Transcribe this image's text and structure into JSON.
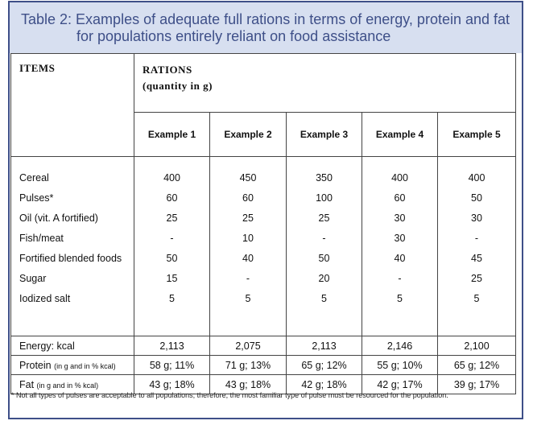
{
  "title": {
    "line1": "Table 2: Examples of adequate full rations in terms of energy, protein and fat",
    "line2": "for populations entirely reliant on food assistance"
  },
  "header": {
    "items": "ITEMS",
    "rations": "RATIONS",
    "quantity": "(quantity in g)",
    "examples": [
      "Example 1",
      "Example 2",
      "Example 3",
      "Example 4",
      "Example 5"
    ]
  },
  "items": [
    "Cereal",
    "Pulses*",
    "Oil (vit. A fortified)",
    "Fish/meat",
    "Fortified blended foods",
    "Sugar",
    "Iodized salt"
  ],
  "values": [
    [
      "400",
      "60",
      "25",
      "-",
      "50",
      "15",
      "5"
    ],
    [
      "450",
      "60",
      "25",
      "10",
      "40",
      "-",
      "5"
    ],
    [
      "350",
      "100",
      "25",
      "-",
      "50",
      "20",
      "5"
    ],
    [
      "400",
      "60",
      "30",
      "30",
      "40",
      "-",
      "5"
    ],
    [
      "400",
      "50",
      "30",
      "-",
      "45",
      "25",
      "5"
    ]
  ],
  "energy": {
    "label": "Energy: kcal",
    "values": [
      "2,113",
      "2,075",
      "2,113",
      "2,146",
      "2,100"
    ]
  },
  "protein": {
    "label": "Protein",
    "note": "(in g and in % kcal)",
    "values": [
      "58 g; 11%",
      "71 g; 13%",
      "65 g; 12%",
      "55 g; 10%",
      "65 g; 12%"
    ]
  },
  "fat": {
    "label": "Fat",
    "note": "(in g and in % kcal)",
    "values": [
      "43 g; 18%",
      "43 g; 18%",
      "42 g; 18%",
      "42 g; 17%",
      "39 g; 17%"
    ]
  },
  "footnote": "* Not all types of pulses are acceptable to all populations; therefore, the most familiar type of pulse must be resourced for the population.",
  "colors": {
    "title_bg": "#d7dff0",
    "accent": "#3e4f88"
  }
}
